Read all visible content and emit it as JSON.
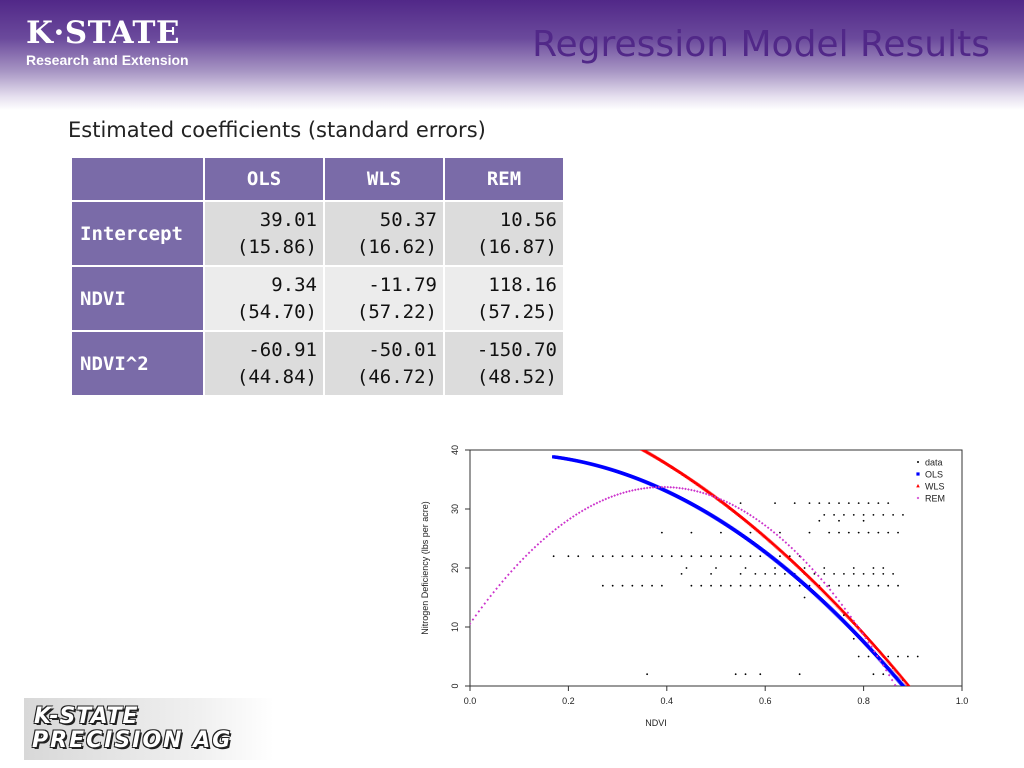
{
  "header": {
    "logo_main": "K·STATE",
    "logo_sub": "Research and Extension",
    "title": "Regression Model Results"
  },
  "subtitle": "Estimated coefficients (standard errors)",
  "table": {
    "columns": [
      "OLS",
      "WLS",
      "REM"
    ],
    "rows": [
      {
        "label": "Intercept",
        "values": [
          "39.01",
          "50.37",
          "10.56"
        ],
        "se": [
          "(15.86)",
          "(16.62)",
          "(16.87)"
        ]
      },
      {
        "label": "NDVI",
        "values": [
          "9.34",
          "-11.79",
          "118.16"
        ],
        "se": [
          "(54.70)",
          "(57.22)",
          "(57.25)"
        ]
      },
      {
        "label": "NDVI^2",
        "values": [
          "-60.91",
          "-50.01",
          "-150.70"
        ],
        "se": [
          "(44.84)",
          "(46.72)",
          "(48.52)"
        ]
      }
    ]
  },
  "footer": {
    "logo_line1": "K-STATE",
    "logo_line2": "PRECISION AG"
  },
  "chart_data": {
    "type": "scatter",
    "title": "",
    "xlabel": "NDVI",
    "ylabel": "Nitrogen Deficiency (lbs per acre)",
    "xlim": [
      0.0,
      1.0
    ],
    "ylim": [
      0,
      40
    ],
    "xticks": [
      "0.0",
      "0.2",
      "0.4",
      "0.6",
      "0.8",
      "1.0"
    ],
    "yticks": [
      "0",
      "10",
      "20",
      "30",
      "40"
    ],
    "legend_position": "top-right",
    "grid": false,
    "series": [
      {
        "name": "data",
        "marker": "circle",
        "color": "#000000",
        "points": [
          [
            0.17,
            22
          ],
          [
            0.2,
            22
          ],
          [
            0.22,
            22
          ],
          [
            0.25,
            22
          ],
          [
            0.27,
            22
          ],
          [
            0.29,
            22
          ],
          [
            0.31,
            22
          ],
          [
            0.33,
            22
          ],
          [
            0.35,
            22
          ],
          [
            0.37,
            22
          ],
          [
            0.39,
            22
          ],
          [
            0.41,
            22
          ],
          [
            0.43,
            22
          ],
          [
            0.45,
            22
          ],
          [
            0.47,
            22
          ],
          [
            0.49,
            22
          ],
          [
            0.51,
            22
          ],
          [
            0.53,
            22
          ],
          [
            0.55,
            22
          ],
          [
            0.57,
            22
          ],
          [
            0.59,
            22
          ],
          [
            0.61,
            22
          ],
          [
            0.63,
            22
          ],
          [
            0.65,
            22
          ],
          [
            0.67,
            22
          ],
          [
            0.27,
            17
          ],
          [
            0.29,
            17
          ],
          [
            0.31,
            17
          ],
          [
            0.33,
            17
          ],
          [
            0.35,
            17
          ],
          [
            0.37,
            17
          ],
          [
            0.39,
            17
          ],
          [
            0.45,
            17
          ],
          [
            0.47,
            17
          ],
          [
            0.49,
            17
          ],
          [
            0.51,
            17
          ],
          [
            0.53,
            17
          ],
          [
            0.55,
            17
          ],
          [
            0.57,
            17
          ],
          [
            0.59,
            17
          ],
          [
            0.61,
            17
          ],
          [
            0.63,
            17
          ],
          [
            0.65,
            17
          ],
          [
            0.67,
            17
          ],
          [
            0.69,
            17
          ],
          [
            0.71,
            17
          ],
          [
            0.73,
            17
          ],
          [
            0.75,
            17
          ],
          [
            0.77,
            17
          ],
          [
            0.79,
            17
          ],
          [
            0.81,
            17
          ],
          [
            0.83,
            17
          ],
          [
            0.85,
            17
          ],
          [
            0.87,
            17
          ],
          [
            0.43,
            19
          ],
          [
            0.49,
            19
          ],
          [
            0.55,
            19
          ],
          [
            0.58,
            19
          ],
          [
            0.6,
            19
          ],
          [
            0.62,
            19
          ],
          [
            0.64,
            19
          ],
          [
            0.66,
            19
          ],
          [
            0.68,
            19
          ],
          [
            0.7,
            19
          ],
          [
            0.72,
            19
          ],
          [
            0.74,
            19
          ],
          [
            0.76,
            19
          ],
          [
            0.78,
            19
          ],
          [
            0.8,
            19
          ],
          [
            0.82,
            19
          ],
          [
            0.84,
            19
          ],
          [
            0.86,
            19
          ],
          [
            0.44,
            20
          ],
          [
            0.5,
            20
          ],
          [
            0.56,
            20
          ],
          [
            0.62,
            20
          ],
          [
            0.68,
            20
          ],
          [
            0.72,
            20
          ],
          [
            0.78,
            20
          ],
          [
            0.82,
            20
          ],
          [
            0.84,
            20
          ],
          [
            0.39,
            26
          ],
          [
            0.45,
            26
          ],
          [
            0.51,
            26
          ],
          [
            0.57,
            26
          ],
          [
            0.63,
            26
          ],
          [
            0.69,
            26
          ],
          [
            0.73,
            26
          ],
          [
            0.75,
            26
          ],
          [
            0.77,
            26
          ],
          [
            0.79,
            26
          ],
          [
            0.81,
            26
          ],
          [
            0.83,
            26
          ],
          [
            0.85,
            26
          ],
          [
            0.87,
            26
          ],
          [
            0.72,
            29
          ],
          [
            0.74,
            29
          ],
          [
            0.76,
            29
          ],
          [
            0.78,
            29
          ],
          [
            0.8,
            29
          ],
          [
            0.82,
            29
          ],
          [
            0.84,
            29
          ],
          [
            0.86,
            29
          ],
          [
            0.88,
            29
          ],
          [
            0.55,
            31
          ],
          [
            0.62,
            31
          ],
          [
            0.66,
            31
          ],
          [
            0.69,
            31
          ],
          [
            0.71,
            31
          ],
          [
            0.73,
            31
          ],
          [
            0.75,
            31
          ],
          [
            0.77,
            31
          ],
          [
            0.79,
            31
          ],
          [
            0.81,
            31
          ],
          [
            0.83,
            31
          ],
          [
            0.85,
            31
          ],
          [
            0.71,
            28
          ],
          [
            0.75,
            28
          ],
          [
            0.8,
            28
          ],
          [
            0.79,
            5
          ],
          [
            0.81,
            5
          ],
          [
            0.83,
            5
          ],
          [
            0.85,
            5
          ],
          [
            0.87,
            5
          ],
          [
            0.89,
            5
          ],
          [
            0.91,
            5
          ],
          [
            0.36,
            2
          ],
          [
            0.54,
            2
          ],
          [
            0.56,
            2
          ],
          [
            0.59,
            2
          ],
          [
            0.67,
            2
          ],
          [
            0.82,
            2
          ],
          [
            0.84,
            2
          ],
          [
            0.68,
            15
          ],
          [
            0.76,
            12
          ],
          [
            0.78,
            8
          ],
          [
            0.86,
            3
          ],
          [
            0.88,
            1
          ]
        ]
      },
      {
        "name": "OLS",
        "marker": "square",
        "color": "#0000ff",
        "coefficients": [
          39.01,
          9.34,
          -60.91
        ],
        "x_range": [
          0.17,
          0.92
        ]
      },
      {
        "name": "WLS",
        "marker": "triangle",
        "color": "#ff0000",
        "coefficients": [
          50.37,
          -11.79,
          -50.01
        ],
        "x_range": [
          0.34,
          0.92
        ]
      },
      {
        "name": "REM",
        "marker": "diamond",
        "color": "#cc33cc",
        "coefficients": [
          10.56,
          118.16,
          -150.7
        ],
        "x_range": [
          0.0,
          0.9
        ]
      }
    ]
  }
}
